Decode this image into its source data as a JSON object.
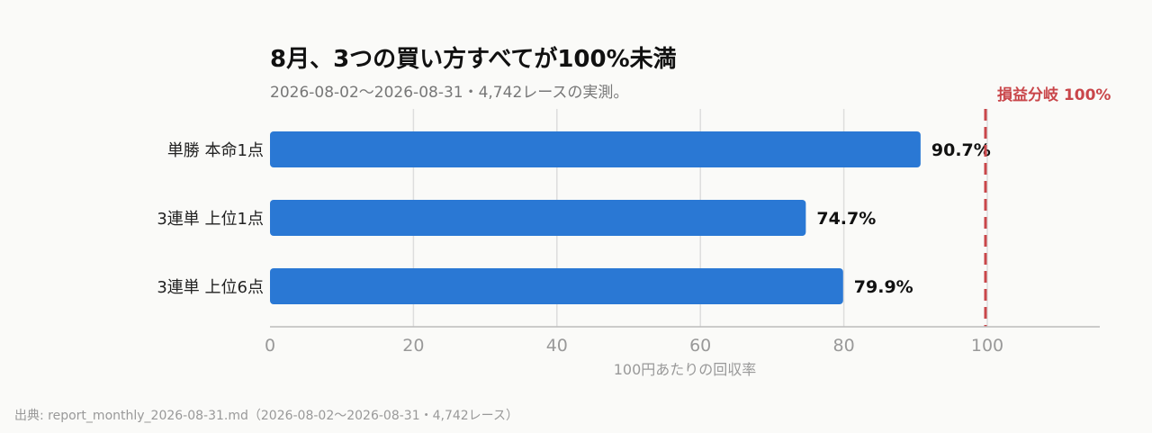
{
  "chart_data": {
    "type": "bar",
    "orientation": "horizontal",
    "title": "8月、3つの買い方すべてが100%未満",
    "subtitle": "2026-08-02〜2026-08-31・4,742レースの実測。",
    "categories": [
      "単勝 本命1点",
      "3連単 上位1点",
      "3連単 上位6点"
    ],
    "values": [
      90.7,
      74.7,
      79.9
    ],
    "value_labels": [
      "90.7%",
      "74.7%",
      "79.9%"
    ],
    "xlabel": "100円あたりの回収率",
    "ylabel": "",
    "xlim": [
      0,
      115
    ],
    "xticks": [
      0,
      20,
      40,
      60,
      80,
      100
    ],
    "grid": true,
    "bar_color": "#2a78d4",
    "reference_line": {
      "value": 100,
      "label": "損益分岐 100%",
      "color": "#c9464a",
      "style": "dashed"
    },
    "source": "出典: report_monthly_2026-08-31.md（2026-08-02〜2026-08-31・4,742レース）"
  }
}
